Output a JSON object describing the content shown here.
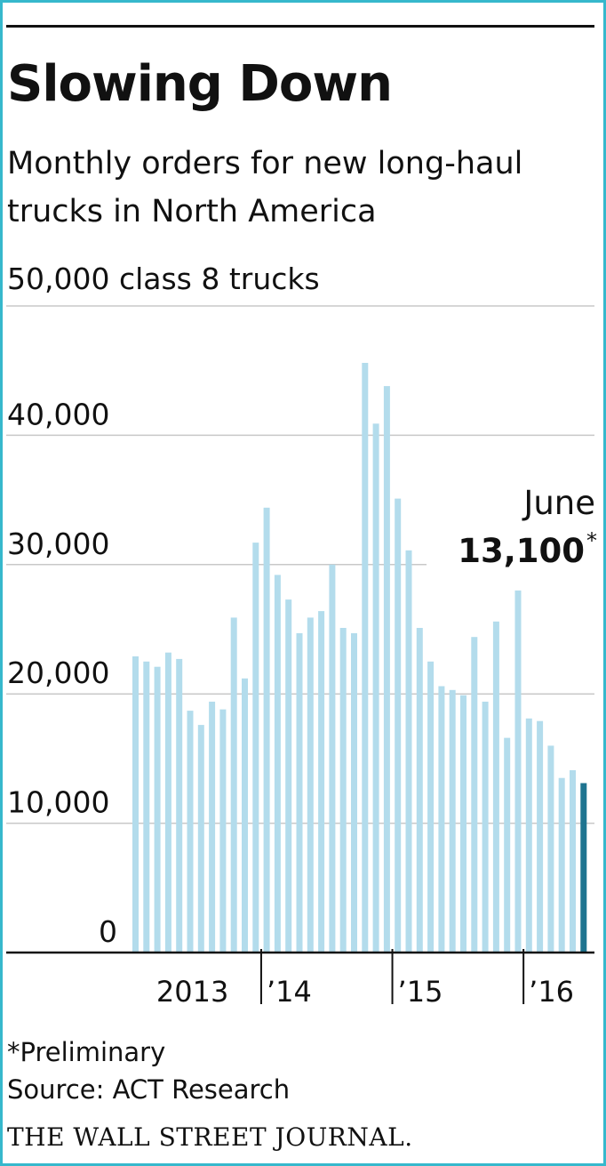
{
  "title": "Slowing Down",
  "subtitle": "Monthly orders for new long-haul trucks in North America",
  "unit_label": "50,000 class 8 trucks",
  "footnote": "*Preliminary",
  "source": "Source: ACT Research",
  "publisher": "THE WALL STREET JOURNAL.",
  "colors": {
    "bar": "#b3dcec",
    "highlight": "#1e7490",
    "grid": "#c8c8c8",
    "border": "#36b8cc",
    "text": "#111111"
  },
  "chart_data": {
    "type": "bar",
    "ylim": [
      0,
      50000
    ],
    "yticks": [
      {
        "value": 40000,
        "label": "40,000"
      },
      {
        "value": 30000,
        "label": "30,000"
      },
      {
        "value": 20000,
        "label": "20,000"
      },
      {
        "value": 10000,
        "label": "10,000"
      },
      {
        "value": 0,
        "label": "0"
      }
    ],
    "grid": true,
    "x_start": "2013-01",
    "year_labels": [
      "2013",
      "’14",
      "’15",
      "’16"
    ],
    "values": [
      22900,
      22500,
      22100,
      23200,
      22700,
      18700,
      17600,
      19400,
      18800,
      25900,
      21200,
      31700,
      34400,
      29200,
      27300,
      24700,
      25900,
      26400,
      30000,
      25100,
      24700,
      45600,
      40900,
      43800,
      35100,
      31100,
      25100,
      22500,
      20600,
      20300,
      19900,
      24400,
      19400,
      25600,
      16600,
      28000,
      18100,
      17900,
      16000,
      13500,
      14100,
      13100
    ],
    "highlight_index": 41,
    "annotation": {
      "month": "June",
      "value": "13,100",
      "mark": "*"
    }
  }
}
